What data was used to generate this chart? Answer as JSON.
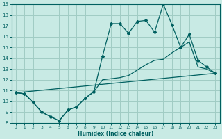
{
  "xlabel": "Humidex (Indice chaleur)",
  "xlim": [
    -0.5,
    23.5
  ],
  "ylim": [
    8,
    19
  ],
  "yticks": [
    8,
    9,
    10,
    11,
    12,
    13,
    14,
    15,
    16,
    17,
    18,
    19
  ],
  "xticks": [
    0,
    1,
    2,
    3,
    4,
    5,
    6,
    7,
    8,
    9,
    10,
    11,
    12,
    13,
    14,
    15,
    16,
    17,
    18,
    19,
    20,
    21,
    22,
    23
  ],
  "bg_color": "#c8eae4",
  "grid_color": "#a0ccc4",
  "line_color": "#006060",
  "line1_x": [
    0,
    23
  ],
  "line1_y": [
    10.8,
    12.6
  ],
  "line2_x": [
    0,
    1,
    2,
    3,
    4,
    5,
    6,
    7,
    8,
    9,
    10,
    11,
    12,
    13,
    14,
    15,
    16,
    17,
    18,
    19,
    20,
    21,
    22,
    23
  ],
  "line2_y": [
    10.8,
    10.7,
    9.9,
    9.0,
    8.6,
    8.2,
    9.2,
    9.5,
    10.3,
    10.9,
    12.0,
    12.1,
    12.2,
    12.4,
    12.9,
    13.4,
    13.8,
    13.9,
    14.5,
    15.0,
    15.5,
    13.2,
    13.0,
    12.6
  ],
  "line3_x": [
    0,
    1,
    2,
    3,
    4,
    5,
    6,
    7,
    8,
    9,
    10,
    11,
    12,
    13,
    14,
    15,
    16,
    17,
    18,
    19,
    20,
    21,
    22,
    23
  ],
  "line3_y": [
    10.8,
    10.7,
    9.9,
    9.0,
    8.6,
    8.2,
    9.2,
    9.5,
    10.3,
    10.9,
    14.2,
    17.2,
    17.2,
    16.3,
    17.4,
    17.5,
    16.4,
    19.0,
    17.1,
    15.0,
    16.2,
    13.8,
    13.2,
    12.6
  ]
}
